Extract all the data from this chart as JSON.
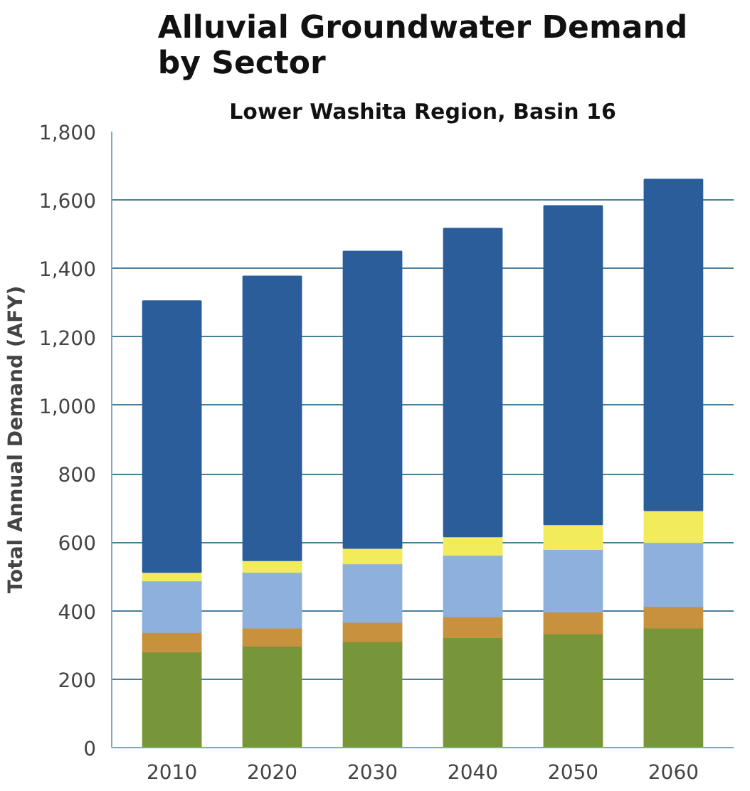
{
  "chart_data": {
    "type": "bar",
    "title": "Alluvial Groundwater Demand\nby Sector",
    "subtitle": "Lower Washita Region, Basin 16",
    "ylabel": "Total Annual Demand (AFY)",
    "categories": [
      "2010",
      "2020",
      "2030",
      "2040",
      "2050",
      "2060"
    ],
    "stacked": true,
    "series": [
      {
        "color": "#77963a",
        "values": [
          280,
          297,
          310,
          322,
          333,
          350
        ]
      },
      {
        "color": "#c8913d",
        "values": [
          57,
          53,
          57,
          61,
          64,
          63
        ]
      },
      {
        "color": "#8db0dc",
        "values": [
          151,
          163,
          171,
          180,
          183,
          187
        ]
      },
      {
        "color": "#f2ec5c",
        "values": [
          25,
          34,
          45,
          54,
          72,
          93
        ]
      },
      {
        "color": "#2a5d9a",
        "values": [
          792,
          830,
          867,
          900,
          931,
          967
        ]
      }
    ],
    "ylim": [
      0,
      1800
    ],
    "yticks": [
      {
        "value": 0,
        "label": "0"
      },
      {
        "value": 200,
        "label": "200"
      },
      {
        "value": 400,
        "label": "400"
      },
      {
        "value": 600,
        "label": "600"
      },
      {
        "value": 800,
        "label": "800"
      },
      {
        "value": 1000,
        "label": "1,000"
      },
      {
        "value": 1200,
        "label": "1,200"
      },
      {
        "value": 1400,
        "label": "1,400"
      },
      {
        "value": 1600,
        "label": "1,600"
      },
      {
        "value": 1800,
        "label": "1,800"
      }
    ],
    "grid": "y"
  }
}
